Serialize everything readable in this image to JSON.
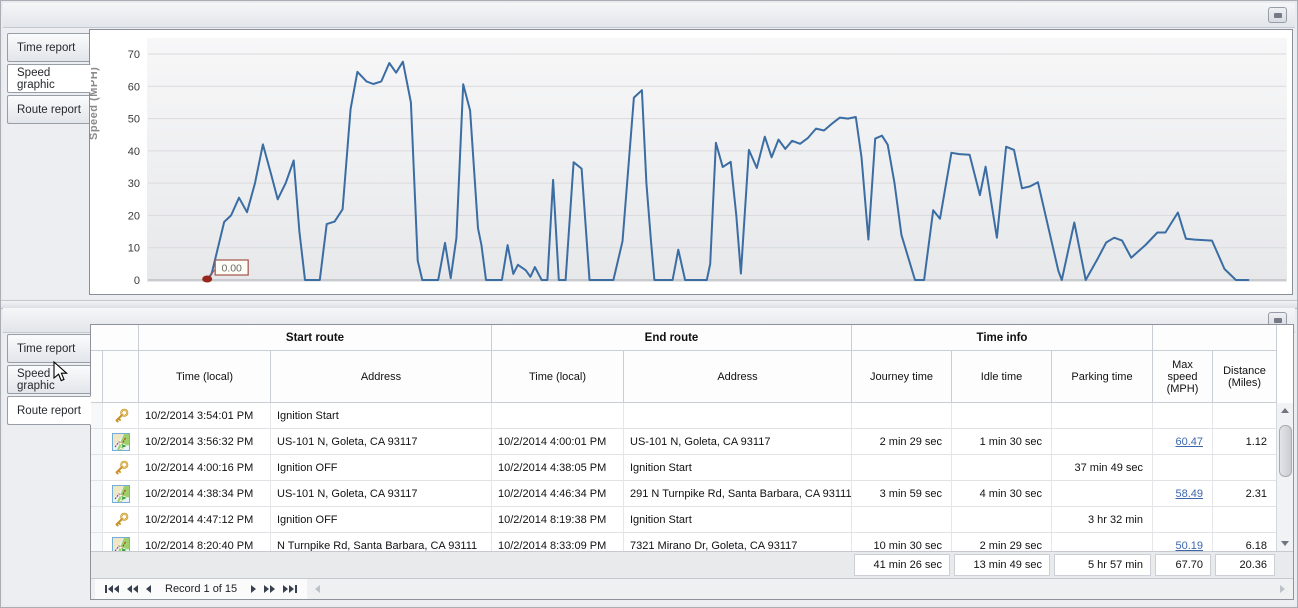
{
  "panels": {
    "top": {
      "tabs": [
        {
          "label": "Time report",
          "active": false
        },
        {
          "label": "Speed graphic",
          "active": true
        },
        {
          "label": "Route report",
          "active": false
        }
      ]
    },
    "bottom": {
      "tabs": [
        {
          "label": "Time report",
          "active": false
        },
        {
          "label": "Speed graphic",
          "active": false
        },
        {
          "label": "Route report",
          "active": true
        }
      ]
    }
  },
  "chart_data": {
    "type": "line",
    "title": "",
    "xlabel": "",
    "ylabel": "Speed (MPH)",
    "ylim": [
      0,
      70
    ],
    "yticks": [
      0,
      10,
      20,
      30,
      40,
      50,
      60,
      70
    ],
    "grid": "horizontal",
    "legend": "none",
    "line_color": "#3b6da3",
    "marker": {
      "x": 0.052,
      "y": 0,
      "color": "#97261c"
    },
    "annotation": {
      "label": "0.00",
      "x": 0.058,
      "y": 0
    },
    "series": [
      {
        "name": "Speed",
        "points": [
          [
            0.052,
            0
          ],
          [
            0.056,
            2
          ],
          [
            0.067,
            18
          ],
          [
            0.073,
            20
          ],
          [
            0.08,
            25.5
          ],
          [
            0.087,
            21
          ],
          [
            0.094,
            30
          ],
          [
            0.101,
            42
          ],
          [
            0.108,
            33
          ],
          [
            0.114,
            25
          ],
          [
            0.121,
            30
          ],
          [
            0.128,
            37
          ],
          [
            0.133,
            15
          ],
          [
            0.138,
            0
          ],
          [
            0.151,
            0
          ],
          [
            0.157,
            17.3
          ],
          [
            0.164,
            18.1
          ],
          [
            0.171,
            21.9
          ],
          [
            0.178,
            53
          ],
          [
            0.184,
            64.5
          ],
          [
            0.192,
            61.5
          ],
          [
            0.198,
            60.7
          ],
          [
            0.205,
            61.5
          ],
          [
            0.212,
            67.2
          ],
          [
            0.218,
            64.2
          ],
          [
            0.224,
            67.6
          ],
          [
            0.231,
            55
          ],
          [
            0.237,
            6
          ],
          [
            0.241,
            0
          ],
          [
            0.255,
            0
          ],
          [
            0.261,
            11.5
          ],
          [
            0.266,
            0.6
          ],
          [
            0.271,
            13
          ],
          [
            0.277,
            60.6
          ],
          [
            0.283,
            52.5
          ],
          [
            0.29,
            16
          ],
          [
            0.293,
            10.9
          ],
          [
            0.297,
            0
          ],
          [
            0.311,
            0
          ],
          [
            0.316,
            10.8
          ],
          [
            0.321,
            1.9
          ],
          [
            0.325,
            4.7
          ],
          [
            0.332,
            3
          ],
          [
            0.336,
            1
          ],
          [
            0.34,
            4
          ],
          [
            0.346,
            0
          ],
          [
            0.351,
            0
          ],
          [
            0.356,
            31
          ],
          [
            0.361,
            0
          ],
          [
            0.367,
            0
          ],
          [
            0.374,
            36.5
          ],
          [
            0.381,
            34.5
          ],
          [
            0.388,
            0
          ],
          [
            0.409,
            0
          ],
          [
            0.417,
            12
          ],
          [
            0.427,
            56.5
          ],
          [
            0.434,
            58.8
          ],
          [
            0.438,
            30
          ],
          [
            0.442,
            12
          ],
          [
            0.445,
            0
          ],
          [
            0.461,
            0
          ],
          [
            0.466,
            9.4
          ],
          [
            0.472,
            0
          ],
          [
            0.491,
            0
          ],
          [
            0.494,
            5
          ],
          [
            0.499,
            42.5
          ],
          [
            0.505,
            35
          ],
          [
            0.512,
            36.6
          ],
          [
            0.517,
            20
          ],
          [
            0.521,
            2
          ],
          [
            0.528,
            40.3
          ],
          [
            0.535,
            34.7
          ],
          [
            0.542,
            44.4
          ],
          [
            0.548,
            38
          ],
          [
            0.554,
            43.5
          ],
          [
            0.56,
            40.6
          ],
          [
            0.566,
            43.1
          ],
          [
            0.573,
            42.2
          ],
          [
            0.58,
            44
          ],
          [
            0.587,
            46.9
          ],
          [
            0.594,
            46.3
          ],
          [
            0.601,
            48.4
          ],
          [
            0.608,
            50.3
          ],
          [
            0.615,
            50.0
          ],
          [
            0.622,
            50.5
          ],
          [
            0.627,
            38
          ],
          [
            0.633,
            12.5
          ],
          [
            0.639,
            43.8
          ],
          [
            0.645,
            44.7
          ],
          [
            0.65,
            41.9
          ],
          [
            0.656,
            30
          ],
          [
            0.662,
            14
          ],
          [
            0.674,
            0
          ],
          [
            0.682,
            0
          ],
          [
            0.69,
            21.6
          ],
          [
            0.696,
            19
          ],
          [
            0.706,
            39.4
          ],
          [
            0.713,
            39
          ],
          [
            0.722,
            38.8
          ],
          [
            0.731,
            26.3
          ],
          [
            0.736,
            35.1
          ],
          [
            0.746,
            13.1
          ],
          [
            0.754,
            41.3
          ],
          [
            0.761,
            40.3
          ],
          [
            0.768,
            28.4
          ],
          [
            0.775,
            29
          ],
          [
            0.782,
            30.3
          ],
          [
            0.792,
            15
          ],
          [
            0.8,
            2.8
          ],
          [
            0.803,
            0
          ],
          [
            0.814,
            17.8
          ],
          [
            0.824,
            0
          ],
          [
            0.835,
            6.9
          ],
          [
            0.842,
            11.6
          ],
          [
            0.849,
            13.1
          ],
          [
            0.856,
            12.2
          ],
          [
            0.864,
            6.9
          ],
          [
            0.877,
            11
          ],
          [
            0.887,
            14.7
          ],
          [
            0.894,
            14.7
          ],
          [
            0.905,
            20.9
          ],
          [
            0.912,
            12.8
          ],
          [
            0.92,
            12.5
          ],
          [
            0.935,
            12.2
          ],
          [
            0.946,
            3.4
          ],
          [
            0.956,
            0
          ],
          [
            0.967,
            0
          ]
        ]
      }
    ]
  },
  "grid": {
    "groups": [
      {
        "label": "Start route"
      },
      {
        "label": "End route"
      },
      {
        "label": "Time info"
      }
    ],
    "columns": [
      {
        "label": "Time (local)"
      },
      {
        "label": "Address"
      },
      {
        "label": "Time (local)"
      },
      {
        "label": "Address"
      },
      {
        "label": "Journey time"
      },
      {
        "label": "Idle time"
      },
      {
        "label": "Parking time"
      },
      {
        "label": "Max speed (MPH)"
      },
      {
        "label": "Distance (Miles)"
      }
    ],
    "rows": [
      {
        "icon": "key",
        "start_time": "10/2/2014 3:54:01 PM",
        "start_addr": "Ignition Start",
        "end_time": "",
        "end_addr": "",
        "journey": "",
        "idle": "",
        "parking": "",
        "max": "",
        "max_link": false,
        "dist": ""
      },
      {
        "icon": "map",
        "start_time": "10/2/2014 3:56:32 PM",
        "start_addr": "US-101 N, Goleta, CA 93117",
        "end_time": "10/2/2014 4:00:01 PM",
        "end_addr": "US-101 N, Goleta, CA 93117",
        "journey": "2 min 29 sec",
        "idle": "1 min 30 sec",
        "parking": "",
        "max": "60.47",
        "max_link": true,
        "dist": "1.12"
      },
      {
        "icon": "key",
        "start_time": "10/2/2014 4:00:16 PM",
        "start_addr": "Ignition OFF",
        "end_time": "10/2/2014 4:38:05 PM",
        "end_addr": "Ignition Start",
        "journey": "",
        "idle": "",
        "parking": "37 min 49 sec",
        "max": "",
        "max_link": false,
        "dist": ""
      },
      {
        "icon": "map",
        "start_time": "10/2/2014 4:38:34 PM",
        "start_addr": "US-101 N, Goleta, CA 93117",
        "end_time": "10/2/2014 4:46:34 PM",
        "end_addr": "291 N Turnpike Rd, Santa Barbara, CA 93111",
        "journey": "3 min 59 sec",
        "idle": "4 min 30 sec",
        "parking": "",
        "max": "58.49",
        "max_link": true,
        "dist": "2.31"
      },
      {
        "icon": "key",
        "start_time": "10/2/2014 4:47:12 PM",
        "start_addr": "Ignition OFF",
        "end_time": "10/2/2014 8:19:38 PM",
        "end_addr": "Ignition Start",
        "journey": "",
        "idle": "",
        "parking": "3 hr 32 min",
        "max": "",
        "max_link": false,
        "dist": ""
      },
      {
        "icon": "map",
        "start_time": "10/2/2014 8:20:40 PM",
        "start_addr": "N Turnpike Rd, Santa Barbara, CA 93111",
        "end_time": "10/2/2014 8:33:09 PM",
        "end_addr": "7321 Mirano Dr, Goleta, CA 93117",
        "journey": "10 min 30 sec",
        "idle": "2 min 29 sec",
        "parking": "",
        "max": "50.19",
        "max_link": true,
        "dist": "6.18"
      }
    ],
    "summary": {
      "journey": "41 min 26 sec",
      "idle": "13 min 49 sec",
      "parking": "5 hr 57 min",
      "max": "67.70",
      "dist": "20.36"
    },
    "navigator": {
      "label": "Record 1 of 15"
    }
  }
}
